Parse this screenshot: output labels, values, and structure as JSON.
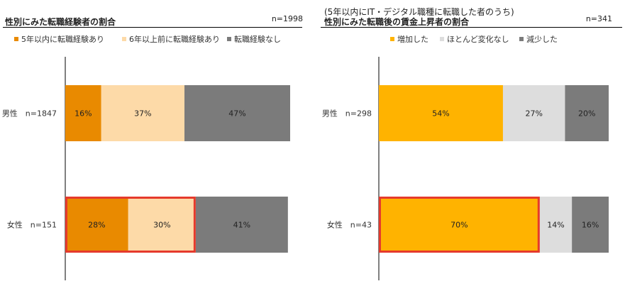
{
  "chart_data": [
    {
      "type": "bar",
      "orientation": "horizontal",
      "stacked": true,
      "title": "性別にみた転職経験者の割合",
      "sample_size": "n=1998",
      "categories": [
        "男性　n=1847",
        "女性　n=151"
      ],
      "series": [
        {
          "name": "5年以内に転職経験あり",
          "color": "#E98A00",
          "values": [
            16,
            28
          ],
          "labels": [
            "16%",
            "28%"
          ]
        },
        {
          "name": "6年以上前に転職経験あり",
          "color": "#FDDAA8",
          "values": [
            37,
            30
          ],
          "labels": [
            "37%",
            "30%"
          ]
        },
        {
          "name": "転職経験なし",
          "color": "#7B7B7B",
          "values": [
            47,
            41
          ],
          "labels": [
            "47%",
            "41%"
          ]
        }
      ],
      "highlight": {
        "category_index": 1,
        "series_indices": [
          0,
          1
        ],
        "color": "#E53A2C"
      },
      "legend_position": "top",
      "xlim": [
        0,
        100
      ]
    },
    {
      "type": "bar",
      "orientation": "horizontal",
      "stacked": true,
      "subtitle": "(5年以内にIT・デジタル職種に転職した者のうち)",
      "title": "性別にみた転職後の賃金上昇者の割合",
      "sample_size": "n=341",
      "categories": [
        "男性　n=298",
        "女性　n=43"
      ],
      "series": [
        {
          "name": "増加した",
          "color": "#FFB300",
          "values": [
            54,
            70
          ],
          "labels": [
            "54%",
            "70%"
          ]
        },
        {
          "name": "ほとんど変化なし",
          "color": "#DDDDDD",
          "values": [
            27,
            14
          ],
          "labels": [
            "27%",
            "14%"
          ]
        },
        {
          "name": "減少した",
          "color": "#7B7B7B",
          "values": [
            20,
            16
          ],
          "labels": [
            "20%",
            "16%"
          ]
        }
      ],
      "highlight": {
        "category_index": 1,
        "series_indices": [
          0
        ],
        "color": "#E53A2C"
      },
      "legend_position": "top",
      "xlim": [
        0,
        100
      ]
    }
  ]
}
